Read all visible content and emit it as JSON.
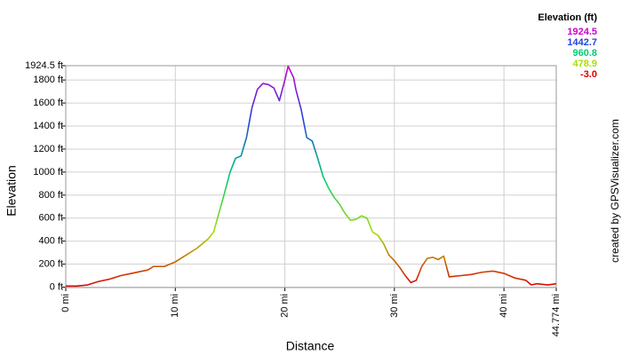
{
  "chart_data": {
    "type": "line",
    "x_label": "Distance",
    "y_label": "Elevation",
    "credit": "created by GPSVisualizer.com",
    "x": [
      0,
      1,
      2,
      3,
      4,
      5,
      6,
      7,
      7.5,
      8,
      9,
      10,
      11,
      12,
      13,
      13.5,
      14,
      14.5,
      15,
      15.5,
      16,
      16.5,
      17,
      17.5,
      18,
      18.5,
      19,
      19.5,
      20,
      20.3,
      20.8,
      21,
      21.5,
      22,
      22.5,
      23,
      23.5,
      24,
      24.5,
      25,
      25.5,
      26,
      26.5,
      27,
      27.5,
      28,
      28.5,
      29,
      29.5,
      30,
      30.5,
      31,
      31.5,
      32,
      32.5,
      33,
      33.5,
      34,
      34.5,
      35,
      36,
      37,
      38,
      39,
      40,
      41,
      42,
      42.5,
      43,
      44,
      44.774
    ],
    "values": [
      10,
      10,
      20,
      50,
      70,
      100,
      120,
      140,
      150,
      180,
      180,
      220,
      280,
      340,
      420,
      480,
      650,
      820,
      1000,
      1120,
      1140,
      1300,
      1560,
      1720,
      1770,
      1760,
      1730,
      1620,
      1800,
      1920,
      1820,
      1720,
      1540,
      1300,
      1270,
      1120,
      960,
      860,
      780,
      720,
      640,
      580,
      590,
      620,
      600,
      480,
      450,
      380,
      280,
      230,
      170,
      100,
      40,
      60,
      180,
      250,
      260,
      240,
      270,
      90,
      100,
      110,
      130,
      140,
      120,
      80,
      60,
      20,
      30,
      20,
      30
    ],
    "xlim": [
      0,
      44.774
    ],
    "ylim": [
      -3,
      1924.5
    ],
    "xticks": [
      {
        "value": 0,
        "label": "0 mi"
      },
      {
        "value": 10,
        "label": "10 mi"
      },
      {
        "value": 20,
        "label": "20 mi"
      },
      {
        "value": 30,
        "label": "30 mi"
      },
      {
        "value": 40,
        "label": "40 mi"
      },
      {
        "value": 44.774,
        "label": "44.774 mi"
      }
    ],
    "yticks": [
      {
        "value": 0,
        "label": "0 ft"
      },
      {
        "value": 200,
        "label": "200 ft"
      },
      {
        "value": 400,
        "label": "400 ft"
      },
      {
        "value": 600,
        "label": "600 ft"
      },
      {
        "value": 800,
        "label": "800 ft"
      },
      {
        "value": 1000,
        "label": "1000 ft"
      },
      {
        "value": 1200,
        "label": "1200 ft"
      },
      {
        "value": 1400,
        "label": "1400 ft"
      },
      {
        "value": 1600,
        "label": "1600 ft"
      },
      {
        "value": 1800,
        "label": "1800 ft"
      },
      {
        "value": 1924.5,
        "label": "1924.5 ft"
      }
    ],
    "grid": true,
    "color_scale": {
      "title": "Elevation (ft)",
      "stops": [
        {
          "value": 1924.5,
          "color": "#cc00cc"
        },
        {
          "value": 1442.7,
          "color": "#2244dd"
        },
        {
          "value": 960.8,
          "color": "#00cc77"
        },
        {
          "value": 478.9,
          "color": "#aadd00"
        },
        {
          "value": -3.0,
          "label": "-3.0",
          "color": "#dd0000"
        }
      ]
    }
  }
}
